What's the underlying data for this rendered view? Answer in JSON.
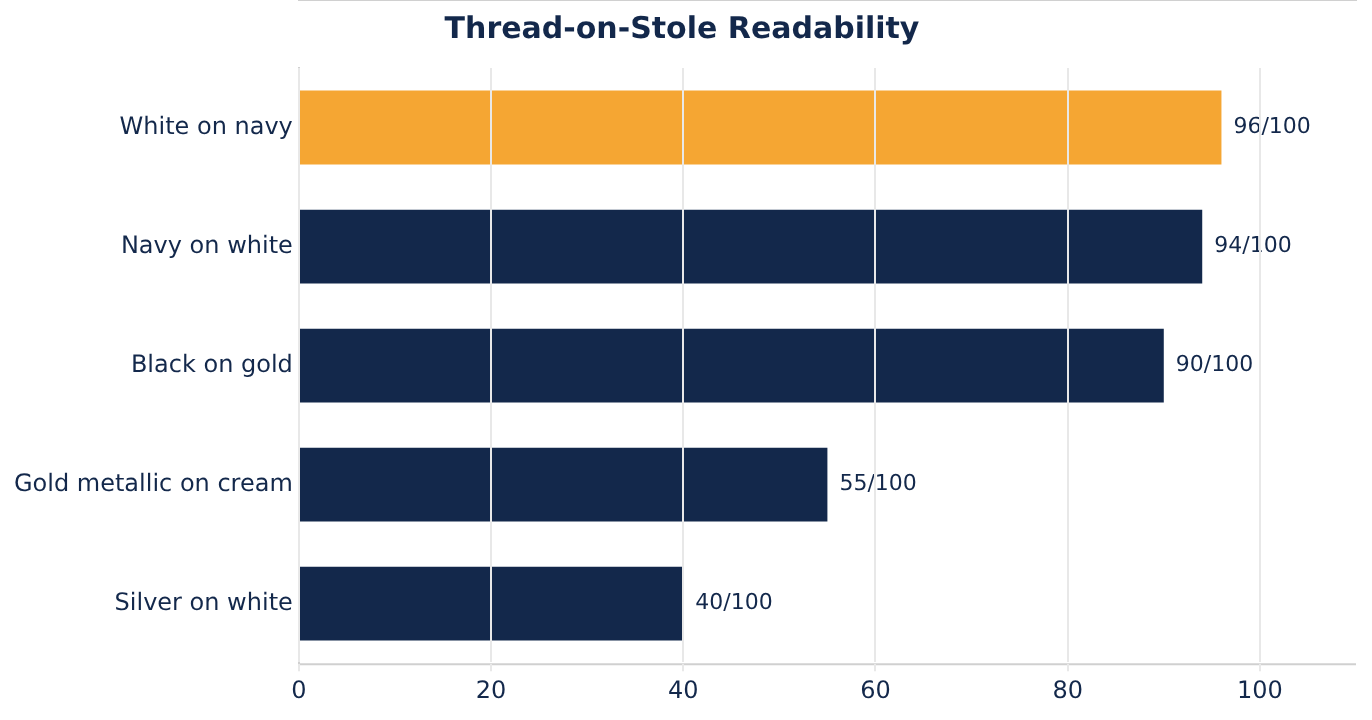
{
  "chart_data": {
    "type": "bar",
    "orientation": "horizontal",
    "title": "Thread-on-Stole Readability",
    "categories": [
      "White on navy",
      "Navy on white",
      "Black on gold",
      "Gold metallic on cream",
      "Silver on white"
    ],
    "values": [
      96,
      94,
      90,
      55,
      40
    ],
    "colors": [
      "#f5a633",
      "#13284b",
      "#13284b",
      "#13284b",
      "#13284b"
    ],
    "value_labels": [
      "96/100",
      "94/100",
      "90/100",
      "55/100",
      "40/100"
    ],
    "xlim": [
      0,
      110
    ],
    "xticks": [
      0,
      20,
      40,
      60,
      80,
      100
    ],
    "grid": "x",
    "legend": false
  }
}
